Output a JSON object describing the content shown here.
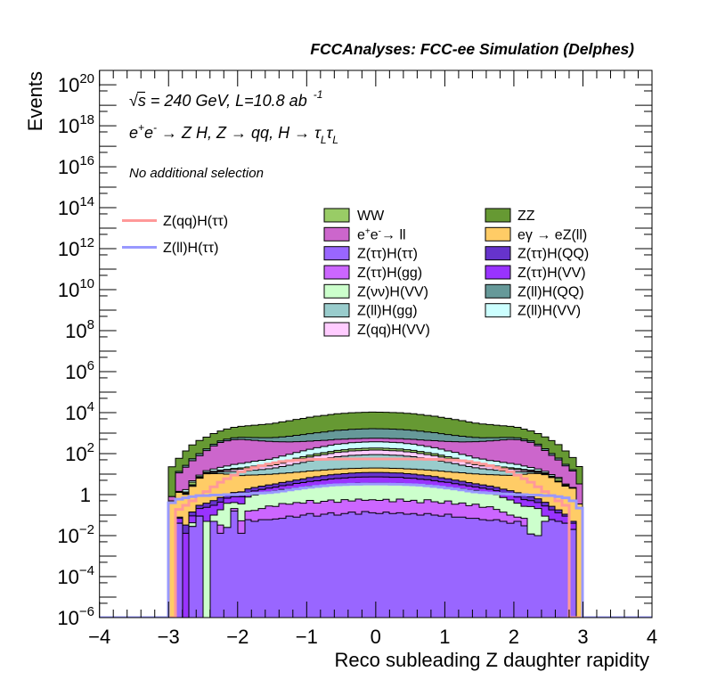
{
  "annotations": {
    "energy_lumi": {
      "sqrt": "√",
      "s": "s",
      "text": " = 240 GeV, L=10.8 ab",
      "sup": "-1"
    },
    "process": {
      "parts": [
        "e",
        "+",
        "e",
        "-",
        " → Z H, Z  → qq, H  → ",
        "τ",
        "L",
        "τ",
        "L"
      ]
    },
    "selection": "No additional selection"
  },
  "chart_data": {
    "type": "bar",
    "subtype": "stacked step histogram with overlaid signal lines",
    "title": "FCCAnalyses: FCC-ee Simulation (Delphes)",
    "xlabel": "Reco subleading Z daughter rapidity",
    "ylabel": "Events",
    "xlim": [
      -4,
      4
    ],
    "ylim": [
      1e-06,
      5e+20
    ],
    "yscale": "log",
    "grid": false,
    "x_ticks": [
      -4,
      -3,
      -2,
      -1,
      0,
      1,
      2,
      3,
      4
    ],
    "x_tick_labels": [
      "−4",
      "−3",
      "−2",
      "−1",
      "0",
      "1",
      "2",
      "3",
      "4"
    ],
    "x_minor_tick_step": 0.2,
    "y_ticks": [
      {
        "exp": 20,
        "base": "10",
        "sup": "20"
      },
      {
        "exp": 18,
        "base": "10",
        "sup": "18"
      },
      {
        "exp": 16,
        "base": "10",
        "sup": "16"
      },
      {
        "exp": 14,
        "base": "10",
        "sup": "14"
      },
      {
        "exp": 12,
        "base": "10",
        "sup": "12"
      },
      {
        "exp": 10,
        "base": "10",
        "sup": "10"
      },
      {
        "exp": 8,
        "base": "10",
        "sup": "8"
      },
      {
        "exp": 6,
        "base": "10",
        "sup": "6"
      },
      {
        "exp": 4,
        "base": "10",
        "sup": "4"
      },
      {
        "exp": 2,
        "base": "10",
        "sup": "2"
      },
      {
        "exp": 0,
        "base": "1",
        "sup": ""
      },
      {
        "exp": -2,
        "base": "10",
        "sup": "−2"
      },
      {
        "exp": -4,
        "base": "10",
        "sup": "−4"
      },
      {
        "exp": -6,
        "base": "10",
        "sup": "−6"
      }
    ],
    "bins": {
      "low": -3.0,
      "high": 3.0,
      "n": 60,
      "width": 0.1
    },
    "stack_order": "bottom-to-top",
    "series": [
      {
        "name": "Z(ττ)H(ττ)",
        "key": "ztautau-htaut",
        "color": "#9966ff",
        "values": [
          0,
          0.04,
          0,
          0.028,
          0.09,
          0,
          0.05,
          0.013,
          0.025,
          0.16,
          0.013,
          0.06,
          0.05,
          0.06,
          0.06,
          0.065,
          0.07,
          0.09,
          0.08,
          0.1,
          0.12,
          0.09,
          0.11,
          0.13,
          0.1,
          0.12,
          0.14,
          0.11,
          0.15,
          0.13,
          0.12,
          0.14,
          0.12,
          0.13,
          0.11,
          0.12,
          0.1,
          0.12,
          0.1,
          0.09,
          0.11,
          0.08,
          0.08,
          0.07,
          0.07,
          0.06,
          0.055,
          0.06,
          0.05,
          0.04,
          0.05,
          0.03,
          0.012,
          0.01,
          0.05,
          0.06,
          0.05,
          0.04,
          0.02,
          0
        ]
      },
      {
        "name": "Z(ττ)H(gg)",
        "key": "ztautau-hgg",
        "color": "#cc66ff",
        "values": [
          0,
          0,
          0,
          0,
          0,
          0,
          0,
          0.02,
          0,
          0.05,
          0.04,
          0.1,
          0.12,
          0.15,
          0.22,
          0.2,
          0.3,
          0.25,
          0.33,
          0.28,
          0.4,
          0.3,
          0.36,
          0.42,
          0.32,
          0.45,
          0.35,
          0.5,
          0.38,
          0.43,
          0.4,
          0.45,
          0.33,
          0.48,
          0.36,
          0.41,
          0.3,
          0.44,
          0.35,
          0.29,
          0.38,
          0.26,
          0.31,
          0.22,
          0.27,
          0.18,
          0.2,
          0.13,
          0.09,
          0.06,
          0.03,
          0.04,
          0,
          0,
          0,
          0,
          0,
          0,
          0,
          0
        ]
      },
      {
        "name": "Z(νν)H(VV)",
        "key": "znunu-hvv",
        "color": "#ccffcc",
        "values": [
          0,
          0,
          0,
          0.014,
          0,
          0.05,
          0.05,
          0.15,
          0.35,
          0.2,
          0.3,
          0.6,
          0.8,
          0.95,
          1.1,
          1.26,
          1.4,
          1.55,
          1.72,
          1.88,
          2.06,
          2.24,
          2.39,
          2.56,
          2.72,
          2.81,
          2.95,
          3.0,
          3.06,
          3.1,
          3.1,
          3.05,
          3.0,
          2.94,
          2.82,
          2.7,
          2.57,
          2.4,
          2.22,
          2.07,
          1.87,
          1.73,
          1.54,
          1.41,
          1.25,
          1.12,
          0.94,
          0.82,
          0.58,
          0.45,
          0.3,
          0.2,
          0.25,
          0.2,
          0.04,
          0,
          0,
          0,
          0,
          0
        ]
      },
      {
        "name": "Z(ττ)H(VV)",
        "key": "ztautau-hvv",
        "color": "#9933ff",
        "values": [
          0,
          0.03,
          0.013,
          0.05,
          0.12,
          0.19,
          0.2,
          0.25,
          0.3,
          0.38,
          0.44,
          0.5,
          0.55,
          0.62,
          0.7,
          0.8,
          0.95,
          1.1,
          1.35,
          1.6,
          1.8,
          2.1,
          2.4,
          2.7,
          3.0,
          3.1,
          3.4,
          3.5,
          3.6,
          3.7,
          3.7,
          3.6,
          3.5,
          3.4,
          3.1,
          3.0,
          2.7,
          2.4,
          2.1,
          1.8,
          1.6,
          1.35,
          1.1,
          0.95,
          0.8,
          0.7,
          0.62,
          0.55,
          0.5,
          0.44,
          0.38,
          0.3,
          0.25,
          0.2,
          0.19,
          0.12,
          0.08,
          0.05,
          0.02,
          0
        ]
      },
      {
        "name": "Z(ττ)H(QQ)",
        "key": "ztautau-hqq",
        "color": "#6633cc",
        "values": [
          0,
          0.01,
          0.02,
          0.05,
          0.09,
          0.14,
          0.21,
          0.29,
          0.38,
          0.48,
          0.57,
          0.64,
          0.7,
          0.8,
          0.9,
          1.0,
          1.2,
          1.45,
          1.7,
          2.0,
          2.4,
          2.8,
          3.1,
          3.5,
          3.8,
          4.1,
          4.4,
          4.5,
          4.7,
          4.8,
          4.8,
          4.7,
          4.5,
          4.4,
          4.1,
          3.8,
          3.5,
          3.1,
          2.8,
          2.4,
          2.0,
          1.7,
          1.45,
          1.2,
          1.0,
          0.9,
          0.8,
          0.7,
          0.64,
          0.57,
          0.48,
          0.38,
          0.29,
          0.21,
          0.14,
          0.09,
          0.05,
          0.02,
          0.01,
          0
        ]
      },
      {
        "name": "eγ → eZ(ll)",
        "key": "egamma-ezll",
        "color": "#ffcc66",
        "values": [
          0.5,
          1.2,
          1.0,
          2.4,
          6.0,
          10,
          10,
          10,
          9,
          8,
          7.2,
          7.0,
          6.9,
          6.8,
          6.8,
          6.9,
          7.0,
          7.1,
          7.2,
          7.3,
          7.4,
          7.4,
          7.5,
          7.5,
          7.6,
          7.6,
          7.7,
          7.7,
          7.8,
          7.8,
          7.8,
          7.8,
          7.7,
          7.7,
          7.6,
          7.6,
          7.5,
          7.5,
          7.4,
          7.4,
          7.3,
          7.2,
          7.1,
          7.0,
          6.9,
          6.8,
          6.8,
          6.9,
          7.0,
          7.2,
          8,
          9,
          10,
          10,
          9,
          6.5,
          4,
          2.5,
          2.0,
          0.35
        ]
      },
      {
        "name": "Z(ll)H(gg)",
        "key": "zll-hgg",
        "color": "#99cccc",
        "values": [
          0,
          0.025,
          0.09,
          0.25,
          0.52,
          0.84,
          1.4,
          2.1,
          2.9,
          4.0,
          4.9,
          5.6,
          6.4,
          7.4,
          8.5,
          10.1,
          12.7,
          15.8,
          20,
          24,
          29,
          35,
          40,
          46,
          53,
          57,
          63,
          65,
          68,
          70,
          70,
          68,
          65,
          63,
          57,
          53,
          46,
          40,
          35,
          29,
          24,
          20,
          15.8,
          12.7,
          10.1,
          8.5,
          7.4,
          6.4,
          5.6,
          4.9,
          4.0,
          2.9,
          2.1,
          1.4,
          0.84,
          0.52,
          0.25,
          0.09,
          0.025,
          0
        ]
      },
      {
        "name": "Z(qq)H(VV)",
        "key": "zqq-hvv",
        "color": "#ffccff",
        "values": [
          0,
          0.02,
          0.08,
          0.21,
          0.44,
          0.7,
          1.2,
          1.7,
          2.5,
          3.4,
          4.1,
          4.7,
          5.4,
          6.3,
          7.1,
          8.5,
          10.7,
          13.3,
          16.6,
          20,
          24.7,
          29.5,
          34,
          39,
          45,
          48,
          53,
          55,
          57,
          59,
          59,
          57,
          55,
          53,
          48,
          45,
          39,
          34,
          29.5,
          24.7,
          20,
          16.6,
          13.3,
          10.7,
          8.5,
          7.1,
          6.3,
          5.4,
          4.7,
          4.1,
          3.4,
          2.5,
          1.7,
          1.2,
          0.7,
          0.44,
          0.21,
          0.08,
          0.02,
          0
        ]
      },
      {
        "name": "WW",
        "key": "ww",
        "color": "#99cc66",
        "values": [
          0,
          0.05,
          0.15,
          1.0,
          0.3,
          0.5,
          0.8,
          1.2,
          1.6,
          2.2,
          2.7,
          3.1,
          3.6,
          4.1,
          4.7,
          5.6,
          7.1,
          8.8,
          11,
          13.4,
          16,
          19.5,
          22,
          26,
          29,
          32,
          35,
          36,
          38,
          39,
          39,
          38,
          36,
          35,
          32,
          29,
          26,
          22,
          19.5,
          16,
          13.4,
          11,
          8.8,
          7.1,
          5.6,
          4.7,
          4.1,
          3.6,
          3.1,
          2.7,
          2.2,
          1.6,
          1.2,
          0.8,
          0.5,
          0.3,
          1.4,
          0.2,
          0.05,
          0
        ]
      },
      {
        "name": "Z(ll)H(VV)",
        "key": "zll-hvv",
        "color": "#ccffff",
        "values": [
          0,
          0.07,
          0.4,
          0.7,
          1.4,
          2.3,
          3.8,
          5.7,
          8,
          11,
          13,
          15,
          18,
          20,
          23,
          28,
          35,
          43,
          54,
          66,
          80,
          96,
          110,
          127,
          145,
          156,
          172,
          179,
          186,
          192,
          190,
          187,
          178,
          173,
          155,
          146,
          126,
          111,
          95,
          81,
          65,
          55,
          42,
          36,
          27,
          24,
          19,
          18,
          15,
          13,
          11,
          8,
          5.5,
          3.9,
          2.2,
          1.5,
          0.8,
          0.3,
          0.1,
          0
        ]
      },
      {
        "name": "e+e-→ ll",
        "key": "ee-ll",
        "color": "#cc66cc",
        "values": [
          0.3,
          10,
          20,
          40,
          70,
          125,
          220,
          330,
          400,
          450,
          460,
          430,
          400,
          370,
          345,
          320,
          300,
          282,
          268,
          255,
          243,
          232,
          222,
          213,
          205,
          198,
          192,
          188,
          186,
          185,
          184,
          187,
          189,
          191,
          199,
          204,
          214,
          221,
          233,
          242,
          256,
          267,
          283,
          299,
          322,
          343,
          372,
          398,
          432,
          458,
          452,
          398,
          335,
          225,
          128,
          72,
          42,
          22,
          12,
          3
        ]
      },
      {
        "name": "Z(ll)H(QQ)",
        "key": "zll-hqq",
        "color": "#669999",
        "values": [
          0,
          2.0,
          5.3,
          12,
          21,
          32,
          48,
          65,
          86,
          110,
          129,
          145,
          162,
          180,
          200,
          230,
          277,
          330,
          395,
          460,
          540,
          620,
          695,
          780,
          870,
          920,
          995,
          1030,
          1060,
          1085,
          1080,
          1065,
          1025,
          990,
          925,
          865,
          785,
          690,
          625,
          535,
          465,
          390,
          335,
          275,
          232,
          198,
          182,
          160,
          147,
          127,
          112,
          84,
          66,
          47,
          33,
          20,
          12,
          5.0,
          2.2,
          0
        ]
      },
      {
        "name": "ZZ",
        "key": "zz",
        "color": "#669933",
        "values": [
          22,
          46,
          108,
          210,
          340,
          470,
          670,
          860,
          1080,
          1330,
          1530,
          1670,
          1840,
          2020,
          2200,
          2480,
          2880,
          3330,
          3870,
          4410,
          5040,
          5670,
          6210,
          6840,
          7470,
          7830,
          8370,
          8600,
          8820,
          9000,
          8950,
          8800,
          8580,
          8350,
          7850,
          7450,
          6860,
          6200,
          5690,
          5020,
          4430,
          3860,
          3340,
          2870,
          2490,
          2190,
          2030,
          1830,
          1680,
          1520,
          1340,
          1070,
          870,
          660,
          480,
          330,
          215,
          105,
          48,
          20
        ]
      }
    ],
    "overlays": [
      {
        "name": "Z(qq)H(ττ)",
        "key": "zqq-htautau",
        "color": "#ff9999",
        "values": [
          0,
          0.19,
          0.3,
          0.5,
          0.9,
          1.4,
          2.4,
          4,
          6,
          9,
          13,
          17,
          21,
          26,
          31,
          36,
          41,
          45,
          48,
          50,
          51,
          52,
          53,
          54,
          54,
          55,
          55,
          55,
          55,
          55,
          55,
          55,
          55,
          55,
          55,
          54,
          54,
          53,
          52,
          51,
          50,
          48,
          45,
          41,
          36,
          31,
          26,
          21,
          17,
          13,
          9,
          6,
          4,
          2.4,
          1.4,
          0.9,
          0.5,
          0.3,
          0,
          0
        ]
      },
      {
        "name": "Z(ll)H(ττ)",
        "key": "zll-htautau",
        "color": "#9999ff",
        "values": [
          0.4,
          0.6,
          0.7,
          0.8,
          0.9,
          0.9,
          0.95,
          0.95,
          1.0,
          1.0,
          1.05,
          1.1,
          1.15,
          1.2,
          1.25,
          1.35,
          1.5,
          1.7,
          1.9,
          2.1,
          2.3,
          2.5,
          2.7,
          2.9,
          3.0,
          3.1,
          3.2,
          3.2,
          3.3,
          3.3,
          3.3,
          3.3,
          3.2,
          3.2,
          3.1,
          3.0,
          2.9,
          2.7,
          2.5,
          2.3,
          2.1,
          1.9,
          1.7,
          1.5,
          1.35,
          1.25,
          1.2,
          1.15,
          1.1,
          1.05,
          1.0,
          1.0,
          0.95,
          0.95,
          0.9,
          0.9,
          0.8,
          0.7,
          0.5,
          0.22
        ]
      }
    ],
    "legend": {
      "placement": {
        "overlays": "top-left",
        "stack": "top-center"
      },
      "overlays": [
        {
          "label": "Z(qq)H(ττ)",
          "color": "#ff9999"
        },
        {
          "label": "Z(ll)H(ττ)",
          "color": "#9999ff"
        }
      ],
      "stack_col1": [
        {
          "label": "WW",
          "color": "#99cc66"
        },
        {
          "label": "e+e-→ ll",
          "parts": [
            "e",
            "+",
            "e",
            "-",
            "→ ll"
          ],
          "color": "#cc66cc"
        },
        {
          "label": "Z(ττ)H(ττ)",
          "color": "#9966ff"
        },
        {
          "label": "Z(ττ)H(gg)",
          "color": "#cc66ff"
        },
        {
          "label": "Z(νν)H(VV)",
          "color": "#ccffcc"
        },
        {
          "label": "Z(ll)H(gg)",
          "color": "#99cccc"
        },
        {
          "label": "Z(qq)H(VV)",
          "color": "#ffccff"
        }
      ],
      "stack_col2": [
        {
          "label": "ZZ",
          "color": "#669933"
        },
        {
          "label": "eγ → eZ(ll)",
          "color": "#ffcc66"
        },
        {
          "label": "Z(ττ)H(QQ)",
          "color": "#6633cc"
        },
        {
          "label": "Z(ττ)H(VV)",
          "color": "#9933ff"
        },
        {
          "label": "Z(ll)H(QQ)",
          "color": "#669999"
        },
        {
          "label": "Z(ll)H(VV)",
          "color": "#ccffff"
        }
      ]
    }
  }
}
